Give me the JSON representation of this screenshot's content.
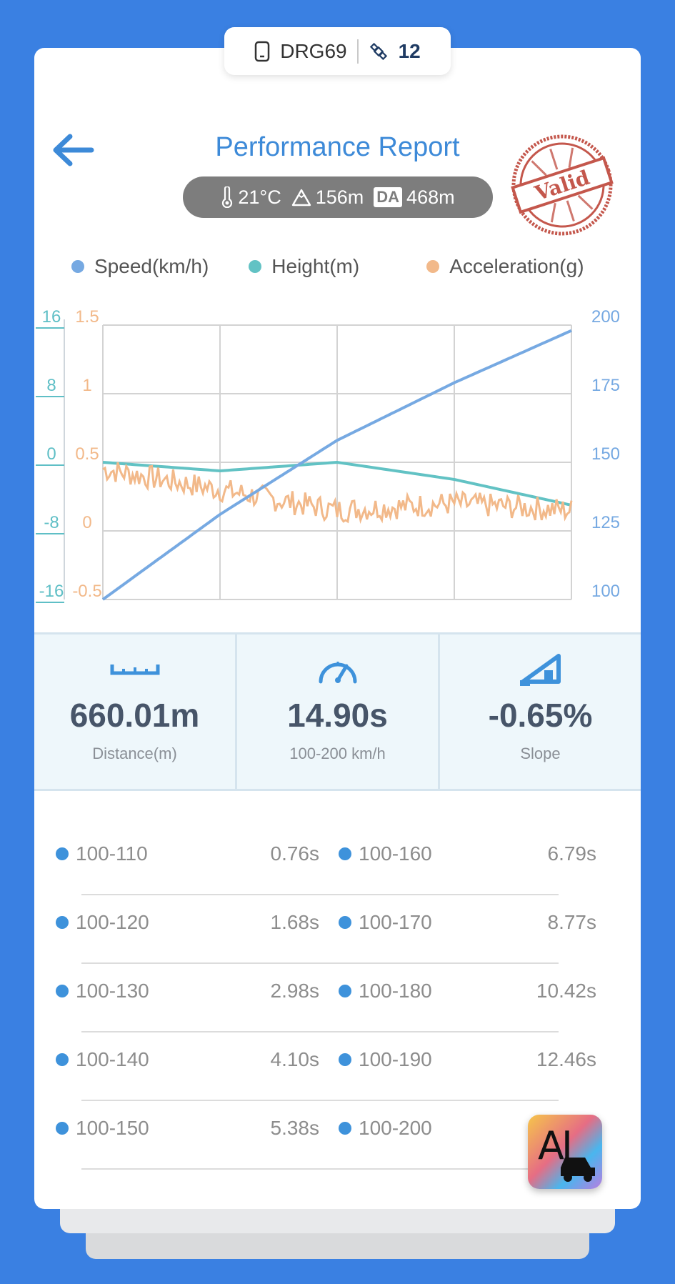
{
  "device": {
    "name": "DRG69",
    "satellites": "12",
    "device_icon": "phone-icon",
    "satellite_icon": "satellite-icon"
  },
  "header": {
    "title": "Performance Report",
    "stamp_text": "Valid"
  },
  "conditions": {
    "temperature": "21°C",
    "altitude": "156m",
    "da_label": "DA",
    "density_altitude": "468m"
  },
  "legend": [
    {
      "label": "Speed(km/h)",
      "color": "#76a9e2"
    },
    {
      "label": "Height(m)",
      "color": "#62c2c4"
    },
    {
      "label": "Acceleration(g)",
      "color": "#f2b98a"
    }
  ],
  "chart_data": {
    "type": "line",
    "x": [
      0,
      1,
      2,
      3,
      4
    ],
    "series": [
      {
        "name": "Speed(km/h)",
        "axis": "right",
        "values": [
          100,
          131,
          158,
          179,
          198
        ]
      },
      {
        "name": "Height(m)",
        "axis": "left-outer",
        "values": [
          0,
          -1,
          0,
          -2,
          -5
        ]
      },
      {
        "name": "Acceleration(g)",
        "axis": "left-inner",
        "values": [
          0.45,
          0.3,
          0.15,
          0.2,
          0.15
        ]
      }
    ],
    "axes": {
      "left_outer": {
        "ticks": [
          "16",
          "8",
          "0",
          "-8",
          "-16"
        ],
        "range": [
          -16,
          16
        ]
      },
      "left_inner": {
        "ticks": [
          "1.5",
          "1",
          "0.5",
          "0",
          "-0.5"
        ],
        "range": [
          -0.5,
          1.5
        ]
      },
      "right": {
        "ticks": [
          "200",
          "175",
          "150",
          "125",
          "100"
        ],
        "range": [
          100,
          200
        ]
      }
    },
    "grid": true,
    "legend": "top"
  },
  "stats": [
    {
      "value": "660.01m",
      "label": "Distance(m)",
      "icon": "ruler-icon"
    },
    {
      "value": "14.90s",
      "label": "100-200 km/h",
      "icon": "speedometer-icon"
    },
    {
      "value": "-0.65%",
      "label": "Slope",
      "icon": "slope-icon"
    }
  ],
  "splits": [
    {
      "left_label": "100-110",
      "left_value": "0.76s",
      "right_label": "100-160",
      "right_value": "6.79s"
    },
    {
      "left_label": "100-120",
      "left_value": "1.68s",
      "right_label": "100-170",
      "right_value": "8.77s"
    },
    {
      "left_label": "100-130",
      "left_value": "2.98s",
      "right_label": "100-180",
      "right_value": "10.42s"
    },
    {
      "left_label": "100-140",
      "left_value": "4.10s",
      "right_label": "100-190",
      "right_value": "12.46s"
    },
    {
      "left_label": "100-150",
      "left_value": "5.38s",
      "right_label": "100-200",
      "right_value": ""
    }
  ],
  "ai_button": {
    "label": "AI"
  }
}
